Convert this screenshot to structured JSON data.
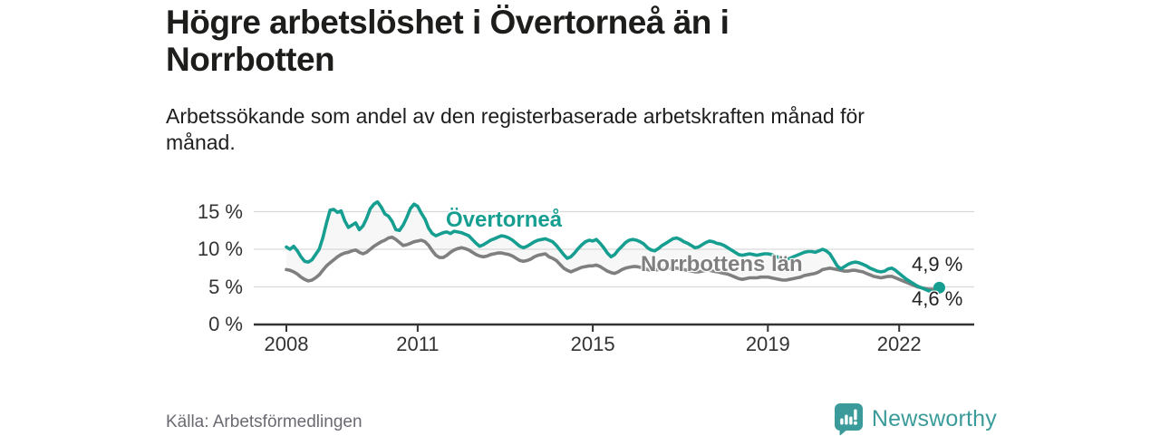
{
  "header": {
    "title": "Högre arbetslöshet i Övertorneå än i Norrbotten",
    "subtitle": "Arbetssökande som andel av den registerbaserade arbetskraften månad för månad."
  },
  "footer": {
    "source": "Källa: Arbetsförmedlingen",
    "brand": "Newsworthy"
  },
  "colors": {
    "overtornea": "#169e91",
    "norrbotten": "#7f7f7f",
    "fill_between": "#f7f7f7",
    "gridline": "#d9d9d9",
    "axis": "#333333",
    "brand_teal": "#3a9b9a"
  },
  "chart_data": {
    "type": "line",
    "x_start_year": 2008,
    "points_per_year": 12,
    "ylim": [
      0,
      16.5
    ],
    "grid": true,
    "x_tick_years": [
      2008,
      2011,
      2015,
      2019,
      2022
    ],
    "x_ticks": [
      "2008",
      "2011",
      "2015",
      "2019",
      "2022"
    ],
    "y_ticks": [
      "15 %",
      "10 %",
      "5 %",
      "0 %"
    ],
    "y_tick_values": [
      15,
      10,
      5,
      0
    ],
    "series": [
      {
        "name": "Övertorneå",
        "color_key": "overtornea",
        "end_label": "4,9 %",
        "end_value": 4.9,
        "values": [
          10.3,
          10.0,
          10.4,
          9.8,
          9.0,
          8.4,
          8.3,
          8.6,
          9.3,
          10.0,
          11.5,
          13.5,
          15.2,
          15.3,
          14.9,
          15.1,
          13.8,
          12.9,
          13.2,
          13.5,
          12.6,
          13.1,
          14.1,
          15.4,
          16.0,
          16.3,
          15.6,
          14.7,
          14.4,
          13.7,
          12.6,
          12.5,
          13.2,
          14.2,
          15.4,
          16.0,
          15.7,
          14.8,
          14.0,
          12.8,
          12.1,
          11.8,
          12.0,
          12.2,
          12.3,
          12.1,
          12.4,
          12.3,
          12.2,
          12.0,
          11.8,
          11.3,
          10.8,
          10.4,
          10.6,
          10.9,
          11.2,
          11.4,
          11.6,
          11.8,
          11.7,
          11.5,
          11.2,
          10.8,
          10.4,
          10.2,
          10.4,
          10.7,
          11.0,
          11.2,
          11.3,
          11.4,
          11.2,
          11.0,
          10.5,
          9.9,
          9.3,
          8.8,
          9.0,
          9.5,
          10.1,
          10.6,
          11.0,
          11.2,
          11.1,
          11.3,
          10.8,
          10.2,
          9.5,
          9.0,
          9.3,
          9.9,
          10.4,
          10.9,
          11.2,
          11.3,
          11.2,
          11.0,
          10.7,
          10.2,
          9.9,
          9.8,
          10.1,
          10.5,
          10.8,
          11.1,
          11.4,
          11.5,
          11.3,
          11.0,
          10.8,
          10.5,
          10.2,
          10.3,
          10.6,
          10.9,
          11.1,
          11.0,
          10.8,
          10.7,
          10.5,
          10.2,
          9.9,
          9.6,
          9.3,
          9.2,
          9.3,
          9.4,
          9.3,
          9.2,
          9.3,
          9.4,
          9.4,
          9.3,
          9.1,
          8.9,
          8.7,
          8.6,
          8.8,
          9.0,
          9.2,
          9.4,
          9.6,
          9.7,
          9.7,
          9.6,
          9.8,
          10.0,
          9.8,
          9.4,
          8.6,
          7.8,
          7.4,
          7.7,
          8.0,
          8.2,
          8.3,
          8.2,
          8.0,
          7.8,
          7.5,
          7.3,
          7.1,
          7.0,
          7.1,
          7.4,
          7.5,
          7.2,
          6.8,
          6.4,
          6.0,
          5.7,
          5.4,
          5.1,
          4.9,
          4.7,
          4.5,
          4.4,
          4.3,
          4.9
        ]
      },
      {
        "name": "Norrbottens län",
        "color_key": "norrbotten",
        "end_label": "4,6 %",
        "end_value": 4.6,
        "values": [
          7.3,
          7.2,
          7.0,
          6.7,
          6.3,
          6.0,
          5.8,
          5.9,
          6.2,
          6.6,
          7.2,
          7.8,
          8.2,
          8.6,
          9.0,
          9.3,
          9.5,
          9.6,
          9.8,
          9.9,
          9.6,
          9.4,
          9.6,
          10.0,
          10.4,
          10.7,
          11.0,
          11.2,
          11.5,
          11.6,
          11.3,
          10.9,
          10.5,
          10.6,
          10.8,
          11.0,
          11.1,
          11.2,
          11.0,
          10.5,
          9.8,
          9.2,
          8.9,
          8.9,
          9.2,
          9.6,
          9.9,
          10.1,
          10.2,
          10.1,
          9.9,
          9.6,
          9.3,
          9.1,
          9.0,
          9.1,
          9.3,
          9.4,
          9.5,
          9.5,
          9.4,
          9.3,
          9.1,
          8.8,
          8.5,
          8.4,
          8.5,
          8.7,
          9.0,
          9.2,
          9.3,
          9.4,
          9.0,
          8.8,
          8.5,
          8.0,
          7.5,
          7.2,
          7.0,
          7.2,
          7.4,
          7.6,
          7.7,
          7.8,
          7.8,
          7.9,
          7.7,
          7.4,
          7.1,
          6.9,
          6.8,
          7.0,
          7.3,
          7.5,
          7.6,
          7.7,
          7.7,
          7.6,
          7.5,
          7.3,
          7.2,
          7.2,
          7.3,
          7.4,
          7.5,
          7.5,
          7.5,
          7.5,
          7.4,
          7.3,
          7.2,
          7.1,
          7.0,
          7.0,
          7.1,
          7.2,
          7.2,
          7.1,
          7.0,
          6.9,
          6.8,
          6.7,
          6.5,
          6.3,
          6.1,
          6.0,
          6.1,
          6.2,
          6.2,
          6.2,
          6.3,
          6.3,
          6.3,
          6.2,
          6.1,
          6.0,
          5.9,
          5.9,
          6.0,
          6.1,
          6.2,
          6.3,
          6.5,
          6.6,
          6.7,
          6.8,
          7.0,
          7.3,
          7.4,
          7.5,
          7.4,
          7.3,
          7.2,
          7.1,
          7.1,
          7.2,
          7.2,
          7.1,
          7.0,
          6.8,
          6.6,
          6.4,
          6.3,
          6.2,
          6.3,
          6.4,
          6.4,
          6.2,
          6.0,
          5.8,
          5.6,
          5.4,
          5.2,
          5.0,
          4.9,
          4.8,
          4.7,
          4.7,
          4.6,
          4.6
        ]
      }
    ]
  }
}
